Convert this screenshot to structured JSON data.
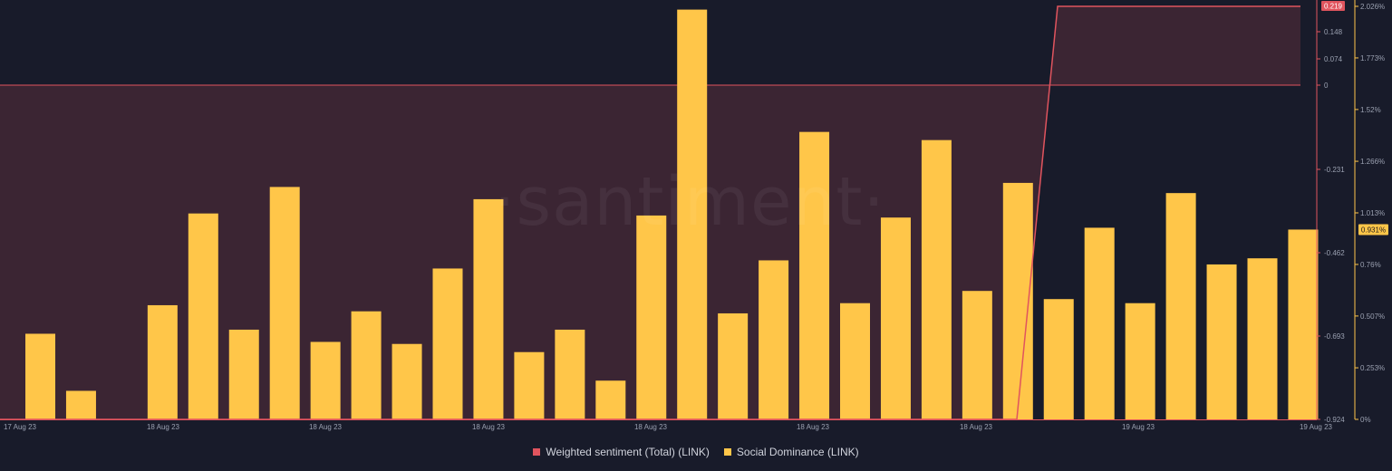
{
  "watermark": "·santiment·",
  "colors": {
    "background": "#181b2a",
    "sentiment": "#e0545e",
    "sentiment_fill": "rgba(224,84,94,0.18)",
    "dominance": "#ffc649",
    "tick_text": "#9aa0b0"
  },
  "legend": [
    {
      "name": "Weighted sentiment (Total) (LINK)",
      "color": "#e0545e"
    },
    {
      "name": "Social Dominance (LINK)",
      "color": "#ffc649"
    }
  ],
  "chart_data": {
    "type": "bar",
    "x_tick_labels": [
      "17 Aug 23",
      "18 Aug 23",
      "18 Aug 23",
      "18 Aug 23",
      "18 Aug 23",
      "18 Aug 23",
      "18 Aug 23",
      "19 Aug 23",
      "19 Aug 23"
    ],
    "y_left": {
      "ticks": [
        0.148,
        0.074,
        0,
        -0.231,
        -0.462,
        -0.693,
        -0.924
      ],
      "tick_labels": [
        "0.148",
        "0.074",
        "0",
        "-0.231",
        "-0.462",
        "-0.693",
        "-0.924"
      ],
      "range": [
        -0.924,
        0.219
      ],
      "current_value_label": "0.219"
    },
    "y_right": {
      "ticks": [
        2.026,
        1.773,
        1.52,
        1.266,
        1.013,
        0.76,
        0.507,
        0.253,
        0
      ],
      "tick_labels": [
        "2.026%",
        "1.773%",
        "1.52%",
        "1.266%",
        "1.013%",
        "0.76%",
        "0.507%",
        "0.253%",
        "0%"
      ],
      "range": [
        0,
        2.026
      ],
      "current_value_label": "0.931%"
    },
    "series": [
      {
        "name": "Social Dominance (LINK)",
        "type": "bar",
        "axis": "right",
        "values": [
          0.42,
          0.14,
          0,
          0.56,
          1.01,
          0.44,
          1.14,
          0.38,
          0.53,
          0.37,
          0.74,
          1.08,
          0.33,
          0.44,
          0.19,
          1.0,
          2.01,
          0.52,
          0.78,
          1.41,
          0.57,
          0.99,
          1.37,
          0.63,
          1.16,
          0.59,
          0.94,
          0.57,
          1.11,
          0.76,
          0.79,
          0.931
        ]
      },
      {
        "name": "Weighted sentiment (Total) (LINK)",
        "type": "area",
        "axis": "left",
        "baseline": 0,
        "values": [
          -0.924,
          -0.924,
          -0.924,
          -0.924,
          -0.924,
          -0.924,
          -0.924,
          -0.924,
          -0.924,
          -0.924,
          -0.924,
          -0.924,
          -0.924,
          -0.924,
          -0.924,
          -0.924,
          -0.924,
          -0.924,
          -0.924,
          -0.924,
          -0.924,
          -0.924,
          -0.924,
          -0.924,
          -0.924,
          0.219,
          0.219,
          0.219,
          0.219,
          0.219,
          0.219,
          0.219
        ]
      }
    ]
  }
}
